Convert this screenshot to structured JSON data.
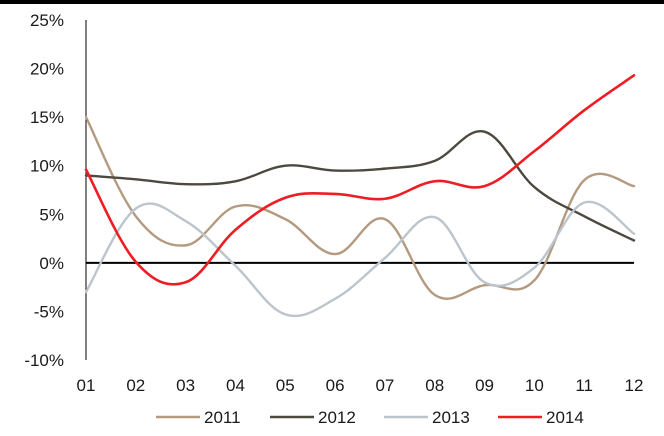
{
  "chart_data": {
    "type": "line",
    "title": "",
    "xlabel": "",
    "ylabel": "",
    "categories": [
      "01",
      "02",
      "03",
      "04",
      "05",
      "06",
      "07",
      "08",
      "09",
      "10",
      "11",
      "12"
    ],
    "ylim": [
      -10,
      25
    ],
    "yticks": [
      -10,
      -5,
      0,
      5,
      10,
      15,
      20,
      25
    ],
    "ytick_labels": [
      "-10%",
      "-5%",
      "0%",
      "5%",
      "10%",
      "15%",
      "20%",
      "25%"
    ],
    "negative_tick_color": "#e8001c",
    "grid": false,
    "legend_position": "bottom",
    "series": [
      {
        "name": "2011",
        "color": "#b39a80",
        "values": [
          15.0,
          4.8,
          1.8,
          5.8,
          4.5,
          0.9,
          4.5,
          -3.3,
          -2.3,
          -1.8,
          8.5,
          7.9
        ]
      },
      {
        "name": "2012",
        "color": "#4d4840",
        "values": [
          9.0,
          8.6,
          8.1,
          8.4,
          10.0,
          9.5,
          9.7,
          10.5,
          13.5,
          7.8,
          4.8,
          2.3
        ]
      },
      {
        "name": "2013",
        "color": "#bcc4cc",
        "values": [
          -3.0,
          5.6,
          4.3,
          -0.3,
          -5.3,
          -3.7,
          0.5,
          4.7,
          -2.0,
          -0.5,
          6.2,
          3.0
        ]
      },
      {
        "name": "2014",
        "color": "#ee1c23",
        "values": [
          9.6,
          0.1,
          -2.0,
          3.4,
          6.7,
          7.1,
          6.6,
          8.4,
          7.9,
          11.5,
          15.7,
          19.3
        ]
      }
    ]
  }
}
